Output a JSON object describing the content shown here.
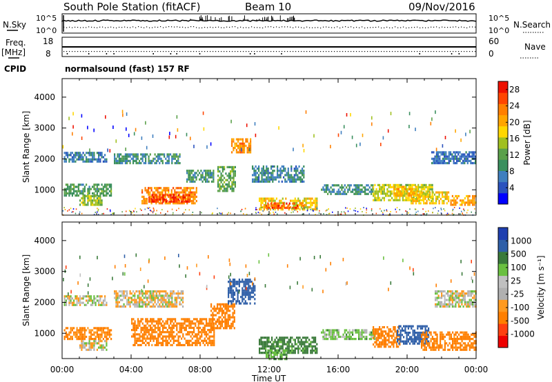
{
  "header": {
    "title": "South Pole Station (fitACF)",
    "beam": "Beam 10",
    "date": "09/Nov/2016"
  },
  "strip_labels": {
    "nsky": "N.Sky",
    "nsky_ticks": [
      "10^5",
      "10^0"
    ],
    "nsearch": "N.Search",
    "nsearch_ticks": [
      "10^5",
      "10^0"
    ],
    "freq": "Freq.",
    "freq_unit": "[MHz]",
    "freq_ticks": [
      "18",
      "8"
    ],
    "nave": "Nave",
    "nave_ticks": [
      "60",
      "0"
    ],
    "cpid": "CPID",
    "cpid_value": "normalsound (fast) 157 RF"
  },
  "colors": {
    "power": [
      "#0000ff",
      "#2a52be",
      "#3f7fbf",
      "#3a8f5e",
      "#5aa04a",
      "#a0c020",
      "#ffd700",
      "#ffa500",
      "#ff7f00",
      "#ff4500",
      "#ee1100"
    ],
    "velocity": [
      "#1f3fb0",
      "#2f5fa8",
      "#3a7a3a",
      "#6ac040",
      "#c0c0c0",
      "#b0b0b0",
      "#ff9a20",
      "#ff7f00",
      "#ff4010",
      "#ee0000"
    ]
  },
  "chart_data": [
    {
      "type": "heatmap",
      "name": "power",
      "xlabel": "Time UT",
      "ylabel": "Slant Range [km]",
      "xticks": [
        "00:00",
        "04:00",
        "08:00",
        "12:00",
        "16:00",
        "20:00",
        "00:00"
      ],
      "xlim_hours": [
        0,
        24
      ],
      "ylim_km": [
        180,
        4600
      ],
      "yticks": [
        1000,
        2000,
        3000,
        4000
      ],
      "colorbar": {
        "label": "Power [dB]",
        "ticks": [
          4,
          8,
          12,
          16,
          20,
          24,
          28
        ],
        "range": [
          0,
          30
        ]
      },
      "regions": [
        {
          "t": [
            0.1,
            2.6
          ],
          "r": [
            1950,
            2300
          ],
          "value": 7
        },
        {
          "t": [
            0.1,
            2.8
          ],
          "r": [
            850,
            1250
          ],
          "value": 11
        },
        {
          "t": [
            1.0,
            2.3
          ],
          "r": [
            550,
            850
          ],
          "value": 14
        },
        {
          "t": [
            3.0,
            6.8
          ],
          "r": [
            1900,
            2200
          ],
          "value": 9
        },
        {
          "t": [
            4.6,
            7.8
          ],
          "r": [
            600,
            1100
          ],
          "value": 22
        },
        {
          "t": [
            5.0,
            7.4
          ],
          "r": [
            650,
            900
          ],
          "value": 27
        },
        {
          "t": [
            7.2,
            8.8
          ],
          "r": [
            1300,
            1700
          ],
          "value": 10
        },
        {
          "t": [
            9.0,
            10.0
          ],
          "r": [
            1000,
            1800
          ],
          "value": 12
        },
        {
          "t": [
            9.8,
            10.9
          ],
          "r": [
            2250,
            2700
          ],
          "value": 22
        },
        {
          "t": [
            11.4,
            14.8
          ],
          "r": [
            400,
            800
          ],
          "value": 18
        },
        {
          "t": [
            11.8,
            14.0
          ],
          "r": [
            450,
            650
          ],
          "value": 25
        },
        {
          "t": [
            11.0,
            14.0
          ],
          "r": [
            1300,
            1800
          ],
          "value": 8
        },
        {
          "t": [
            15.0,
            18.0
          ],
          "r": [
            900,
            1200
          ],
          "value": 9
        },
        {
          "t": [
            18.0,
            21.5
          ],
          "r": [
            700,
            1200
          ],
          "value": 16
        },
        {
          "t": [
            19.2,
            20.6
          ],
          "r": [
            850,
            1150
          ],
          "value": 20
        },
        {
          "t": [
            20.2,
            22.4
          ],
          "r": [
            600,
            1000
          ],
          "value": 18
        },
        {
          "t": [
            21.4,
            24.0
          ],
          "r": [
            1900,
            2300
          ],
          "value": 6
        },
        {
          "t": [
            22.5,
            24.0
          ],
          "r": [
            550,
            900
          ],
          "value": 21
        }
      ]
    },
    {
      "type": "heatmap",
      "name": "velocity",
      "xlabel": "Time UT",
      "ylabel": "Slant Range [km]",
      "xticks": [
        "00:00",
        "04:00",
        "08:00",
        "12:00",
        "16:00",
        "20:00",
        "00:00"
      ],
      "xlim_hours": [
        0,
        24
      ],
      "ylim_km": [
        180,
        4600
      ],
      "yticks": [
        1000,
        2000,
        3000,
        4000
      ],
      "colorbar": {
        "label": "Velocity [m s⁻¹]",
        "ticks": [
          "1000",
          "500",
          "100",
          "25",
          "-25",
          "-100",
          "-500",
          "-1000"
        ]
      },
      "regions": [
        {
          "t": [
            0.1,
            2.6
          ],
          "r": [
            1950,
            2250
          ],
          "value": 0
        },
        {
          "t": [
            0.1,
            2.8
          ],
          "r": [
            850,
            1250
          ],
          "value": -120
        },
        {
          "t": [
            1.0,
            2.6
          ],
          "r": [
            500,
            850
          ],
          "value": 0
        },
        {
          "t": [
            3.0,
            7.0
          ],
          "r": [
            1900,
            2400
          ],
          "value": -10
        },
        {
          "t": [
            4.0,
            8.8
          ],
          "r": [
            650,
            1500
          ],
          "value": -150
        },
        {
          "t": [
            8.6,
            10.0
          ],
          "r": [
            1200,
            2000
          ],
          "value": -200
        },
        {
          "t": [
            9.6,
            11.2
          ],
          "r": [
            2000,
            2800
          ],
          "value": 600
        },
        {
          "t": [
            11.4,
            14.8
          ],
          "r": [
            400,
            900
          ],
          "value": 150
        },
        {
          "t": [
            11.8,
            13.0
          ],
          "r": [
            200,
            500
          ],
          "value": 80
        },
        {
          "t": [
            15.0,
            18.2
          ],
          "r": [
            850,
            1200
          ],
          "value": 50
        },
        {
          "t": [
            18.0,
            19.6
          ],
          "r": [
            600,
            1300
          ],
          "value": -250
        },
        {
          "t": [
            19.4,
            21.2
          ],
          "r": [
            700,
            1300
          ],
          "value": 700
        },
        {
          "t": [
            20.8,
            24.0
          ],
          "r": [
            500,
            1100
          ],
          "value": -150
        },
        {
          "t": [
            21.6,
            24.0
          ],
          "r": [
            1900,
            2400
          ],
          "value": 5
        }
      ]
    }
  ]
}
